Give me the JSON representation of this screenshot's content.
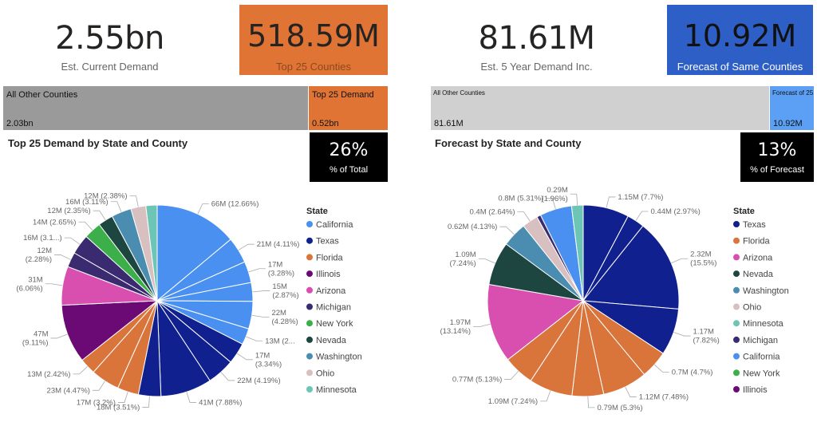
{
  "left": {
    "kpi_value": "2.55bn",
    "kpi_label": "Est. Current Demand",
    "box_value": "518.59M",
    "box_label": "Top 25 Counties",
    "box_color": "#E07434",
    "bar_other_label": "All Other Counties",
    "bar_other_value": "2.03bn",
    "bar_top_label": "Top 25 Demand",
    "bar_top_value": "0.52bn",
    "section_title": "Top 25 Demand by State and County",
    "pct_value": "26%",
    "pct_label": "% of Total"
  },
  "right": {
    "kpi_value": "81.61M",
    "kpi_label": "Est. 5 Year Demand Inc.",
    "box_value": "10.92M",
    "box_label": "Forecast of Same Counties",
    "box_color": "#2E5FC7",
    "bar_other_label": "All Other Counties",
    "bar_other_value": "81.61M",
    "bar_top_label": "Forecast of 25",
    "bar_top_value": "10.92M",
    "section_title": "Forecast by State and County",
    "pct_value": "13%",
    "pct_label": "% of Forecast"
  },
  "chart_data": [
    {
      "type": "pie",
      "legend_title": "State",
      "legend_placement": "right",
      "legend": [
        {
          "name": "California",
          "color": "#4A90F0"
        },
        {
          "name": "Texas",
          "color": "#10208F"
        },
        {
          "name": "Florida",
          "color": "#D9743A"
        },
        {
          "name": "Illinois",
          "color": "#6B0A74"
        },
        {
          "name": "Arizona",
          "color": "#D94FB0"
        },
        {
          "name": "Michigan",
          "color": "#3A2A70"
        },
        {
          "name": "New York",
          "color": "#3CAF4A"
        },
        {
          "name": "Nevada",
          "color": "#1E4640"
        },
        {
          "name": "Washington",
          "color": "#4A8DB0"
        },
        {
          "name": "Ohio",
          "color": "#D9C0C0"
        },
        {
          "name": "Minnesota",
          "color": "#6CC5B5"
        }
      ],
      "slices": [
        {
          "state": "California",
          "value": 66,
          "pct": 12.66,
          "label": "66M (12.66%)"
        },
        {
          "state": "California",
          "value": 21,
          "pct": 4.11,
          "label": "21M (4.11%)"
        },
        {
          "state": "California",
          "value": 17,
          "pct": 3.28,
          "label": "17M\n(3.28%)"
        },
        {
          "state": "California",
          "value": 15,
          "pct": 2.87,
          "label": "15M\n(2.87%)"
        },
        {
          "state": "California",
          "value": 22,
          "pct": 4.28,
          "label": "22M\n(4.28%)"
        },
        {
          "state": "California",
          "value": 13,
          "pct": 2.5,
          "label": "13M (2..."
        },
        {
          "state": "Texas",
          "value": 17,
          "pct": 3.34,
          "label": "17M\n(3.34%)"
        },
        {
          "state": "Texas",
          "value": 22,
          "pct": 4.19,
          "label": "22M (4.19%)"
        },
        {
          "state": "Texas",
          "value": 41,
          "pct": 7.88,
          "label": "41M (7.88%)"
        },
        {
          "state": "Texas",
          "value": 18,
          "pct": 3.51,
          "label": "18M (3.51%)"
        },
        {
          "state": "Florida",
          "value": 17,
          "pct": 3.2,
          "label": "17M (3.2%)"
        },
        {
          "state": "Florida",
          "value": 23,
          "pct": 4.47,
          "label": "23M (4.47%)"
        },
        {
          "state": "Florida",
          "value": 13,
          "pct": 2.42,
          "label": "13M (2.42%)"
        },
        {
          "state": "Illinois",
          "value": 47,
          "pct": 9.11,
          "label": "47M\n(9.11%)"
        },
        {
          "state": "Arizona",
          "value": 31,
          "pct": 6.06,
          "label": "31M\n(6.06%)"
        },
        {
          "state": "Michigan",
          "value": 12,
          "pct": 2.28,
          "label": "12M\n(2.28%)"
        },
        {
          "state": "Michigan",
          "value": 16,
          "pct": 3.1,
          "label": "16M (3.1...)"
        },
        {
          "state": "New York",
          "value": 14,
          "pct": 2.65,
          "label": "14M (2.65%)"
        },
        {
          "state": "Nevada",
          "value": 12,
          "pct": 2.35,
          "label": "12M (2.35%)"
        },
        {
          "state": "Washington",
          "value": 16,
          "pct": 3.11,
          "label": "16M (3.11%)"
        },
        {
          "state": "Ohio",
          "value": 12,
          "pct": 2.38,
          "label": "12M (2.38%)"
        },
        {
          "state": "Minnesota",
          "value": 9,
          "pct": 1.7,
          "label": ""
        }
      ]
    },
    {
      "type": "pie",
      "legend_title": "State",
      "legend_placement": "right",
      "legend": [
        {
          "name": "Texas",
          "color": "#10208F"
        },
        {
          "name": "Florida",
          "color": "#D9743A"
        },
        {
          "name": "Arizona",
          "color": "#D94FB0"
        },
        {
          "name": "Nevada",
          "color": "#1E4640"
        },
        {
          "name": "Washington",
          "color": "#4A8DB0"
        },
        {
          "name": "Ohio",
          "color": "#D9C0C0"
        },
        {
          "name": "Minnesota",
          "color": "#6CC5B5"
        },
        {
          "name": "Michigan",
          "color": "#3A2A70"
        },
        {
          "name": "California",
          "color": "#4A90F0"
        },
        {
          "name": "New York",
          "color": "#3CAF4A"
        },
        {
          "name": "Illinois",
          "color": "#6B0A74"
        }
      ],
      "slices": [
        {
          "state": "Texas",
          "value": 1.15,
          "pct": 7.7,
          "label": "1.15M (7.7%)"
        },
        {
          "state": "Texas",
          "value": 0.44,
          "pct": 2.97,
          "label": "0.44M (2.97%)"
        },
        {
          "state": "Texas",
          "value": 2.32,
          "pct": 15.5,
          "label": "2.32M\n(15.5%)"
        },
        {
          "state": "Texas",
          "value": 1.17,
          "pct": 7.82,
          "label": "1.17M\n(7.82%)"
        },
        {
          "state": "Florida",
          "value": 0.7,
          "pct": 4.7,
          "label": "0.7M (4.7%)"
        },
        {
          "state": "Florida",
          "value": 1.12,
          "pct": 7.48,
          "label": "1.12M (7.48%)"
        },
        {
          "state": "Florida",
          "value": 0.79,
          "pct": 5.3,
          "label": "0.79M (5.3%)"
        },
        {
          "state": "Florida",
          "value": 1.09,
          "pct": 7.24,
          "label": "1.09M (7.24%)"
        },
        {
          "state": "Florida",
          "value": 0.77,
          "pct": 5.13,
          "label": "0.77M (5.13%)"
        },
        {
          "state": "Arizona",
          "value": 1.97,
          "pct": 13.14,
          "label": "1.97M\n(13.14%)"
        },
        {
          "state": "Nevada",
          "value": 1.09,
          "pct": 7.24,
          "label": "1.09M\n(7.24%)"
        },
        {
          "state": "Washington",
          "value": 0.62,
          "pct": 4.13,
          "label": "0.62M (4.13%)"
        },
        {
          "state": "Ohio",
          "value": 0.4,
          "pct": 2.64,
          "label": "0.4M (2.64%)"
        },
        {
          "state": "Michigan",
          "value": 0.1,
          "pct": 0.67,
          "label": ""
        },
        {
          "state": "California",
          "value": 0.8,
          "pct": 5.31,
          "label": "0.8M (5.31%)"
        },
        {
          "state": "Minnesota",
          "value": 0.29,
          "pct": 1.96,
          "label": "0.29M\n(1.96%)"
        }
      ]
    }
  ]
}
